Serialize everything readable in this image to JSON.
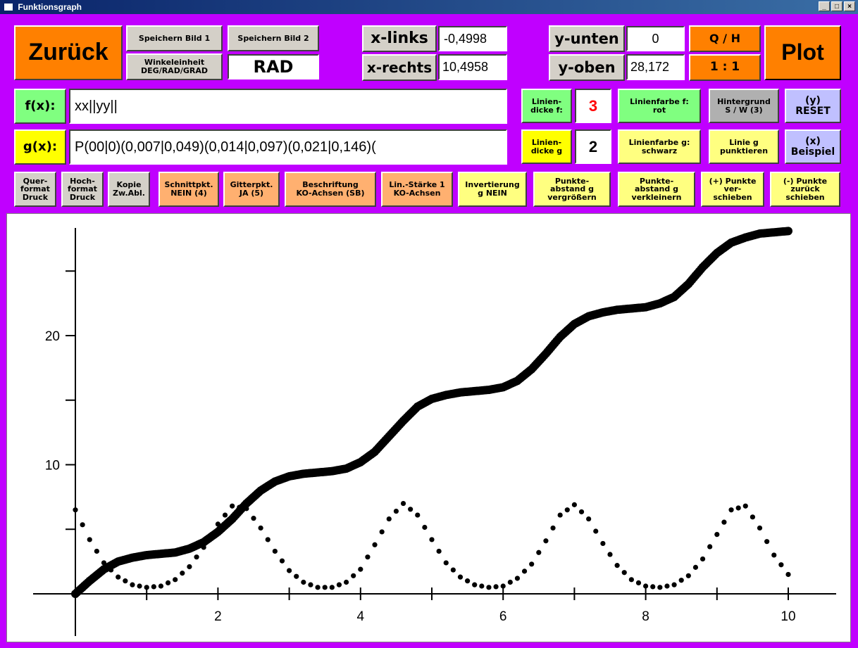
{
  "window": {
    "title": "Funktionsgraph",
    "min_label": "_",
    "max_label": "□",
    "close_label": "×"
  },
  "toolbar": {
    "back": "Zurück",
    "save1": "Speichern Bild 1",
    "save2": "Speichern Bild 2",
    "angle_unit": "Winkeleinheit\nDEG/RAD/GRAD",
    "angle_value": "RAD",
    "x_left_label": "x-links",
    "x_left_value": "-0,4998",
    "x_right_label": "x-rechts",
    "x_right_value": "10,4958",
    "y_bottom_label": "y-unten",
    "y_bottom_value": "0",
    "y_top_label": "y-oben",
    "y_top_value": "28,172",
    "qh": "Q / H",
    "ratio": "1 : 1",
    "plot": "Plot"
  },
  "functions": {
    "f_label": "f(x):",
    "f_value": "xx||yy||",
    "g_label": "g(x):",
    "g_value": "P(00|0)(0,007|0,049)(0,014|0,097)(0,021|0,146)(",
    "f_thickness_label": "Linien-\ndicke f:",
    "f_thickness_value": "3",
    "g_thickness_label": "Linien-\ndicke g",
    "g_thickness_value": "2",
    "f_color": "Linienfarbe f:\nrot",
    "g_color": "Linienfarbe g:\nschwarz",
    "background": "Hintergrund\nS / W (3)",
    "g_dotted": "Linie g\npunktieren",
    "reset": "(y)\nRESET",
    "example": "(x)\nBeispiel"
  },
  "options": {
    "landscape": "Quer-\nformat\nDruck",
    "portrait": "Hoch-\nformat\nDruck",
    "copy": "Kopie\nZw.Abl.",
    "intersections": "Schnittpkt.\nNEIN (4)",
    "grid": "Gitterpkt.\nJA (5)",
    "labeling": "Beschriftung\nKO-Achsen  (SB)",
    "line_strength": "Lin.-Stärke 1\nKO-Achsen",
    "invert": "Invertierung\ng  NEIN",
    "increase_spacing": "Punkte-\nabstand g\nvergrößern",
    "decrease_spacing": "Punkte-\nabstand g\nverkleinern",
    "move_plus": "(+) Punkte\nver-\nschieben",
    "move_minus": "(-) Punkte\nzurück\nschieben"
  },
  "colors": {
    "window_bg": "#c000ff",
    "accent_orange": "#ff8000",
    "f_curve": "#000000",
    "g_dots": "#000000",
    "thickness_red": "#ff0000"
  },
  "chart_data": {
    "type": "scatter",
    "xlim": [
      -0.4998,
      10.4958
    ],
    "ylim": [
      0,
      28.172
    ],
    "x_ticks": [
      1,
      2,
      3,
      4,
      5,
      6,
      7,
      8,
      9,
      10
    ],
    "x_tick_labels": [
      "2",
      "4",
      "6",
      "8",
      "10"
    ],
    "y_ticks": [
      5,
      10,
      15,
      20,
      25
    ],
    "y_tick_labels": [
      "10",
      "20"
    ],
    "grid": false,
    "series": [
      {
        "style": "thick-dots",
        "x": [
          0,
          0.2,
          0.4,
          0.6,
          0.8,
          1,
          1.2,
          1.4,
          1.6,
          1.8,
          2,
          2.2,
          2.4,
          2.6,
          2.8,
          3,
          3.2,
          3.4,
          3.6,
          3.8,
          4,
          4.2,
          4.4,
          4.6,
          4.8,
          5,
          5.2,
          5.4,
          5.6,
          5.8,
          6,
          6.2,
          6.4,
          6.6,
          6.8,
          7,
          7.2,
          7.4,
          7.6,
          7.8,
          8,
          8.2,
          8.4,
          8.6,
          8.8,
          9,
          9.2,
          9.4,
          9.6,
          9.8,
          10
        ],
        "y": [
          0,
          1,
          1.9,
          2.5,
          2.8,
          3,
          3.1,
          3.2,
          3.5,
          4,
          4.8,
          5.8,
          7,
          8,
          8.7,
          9.1,
          9.3,
          9.4,
          9.5,
          9.7,
          10.2,
          11,
          12.2,
          13.4,
          14.5,
          15.1,
          15.4,
          15.6,
          15.7,
          15.8,
          16,
          16.5,
          17.4,
          18.6,
          19.9,
          20.9,
          21.5,
          21.8,
          22,
          22.1,
          22.2,
          22.5,
          23,
          24,
          25.3,
          26.4,
          27.2,
          27.6,
          27.9,
          28,
          28.1
        ]
      },
      {
        "style": "dotted",
        "x": [
          0,
          0.2,
          0.4,
          0.6,
          0.8,
          1,
          1.2,
          1.4,
          1.6,
          1.8,
          2,
          2.2,
          2.4,
          2.6,
          2.8,
          3,
          3.2,
          3.4,
          3.6,
          3.8,
          4,
          4.2,
          4.4,
          4.6,
          4.8,
          5,
          5.2,
          5.4,
          5.6,
          5.8,
          6,
          6.2,
          6.4,
          6.6,
          6.8,
          7,
          7.2,
          7.4,
          7.6,
          7.8,
          8,
          8.2,
          8.4,
          8.6,
          8.8,
          9,
          9.2,
          9.4,
          9.6,
          9.8,
          10
        ],
        "y": [
          6.5,
          4.2,
          2.4,
          1.3,
          0.7,
          0.5,
          0.6,
          1.1,
          2.1,
          3.6,
          5.4,
          6.8,
          6.6,
          5.1,
          3.3,
          1.8,
          0.9,
          0.5,
          0.5,
          0.9,
          1.9,
          3.8,
          5.8,
          7,
          6.1,
          4.2,
          2.4,
          1.3,
          0.7,
          0.5,
          0.6,
          1.2,
          2.3,
          4.1,
          6.1,
          6.9,
          5.8,
          3.9,
          2.2,
          1.1,
          0.6,
          0.5,
          0.7,
          1.4,
          2.7,
          4.6,
          6.5,
          6.8,
          5.1,
          3,
          1.5
        ]
      }
    ]
  }
}
